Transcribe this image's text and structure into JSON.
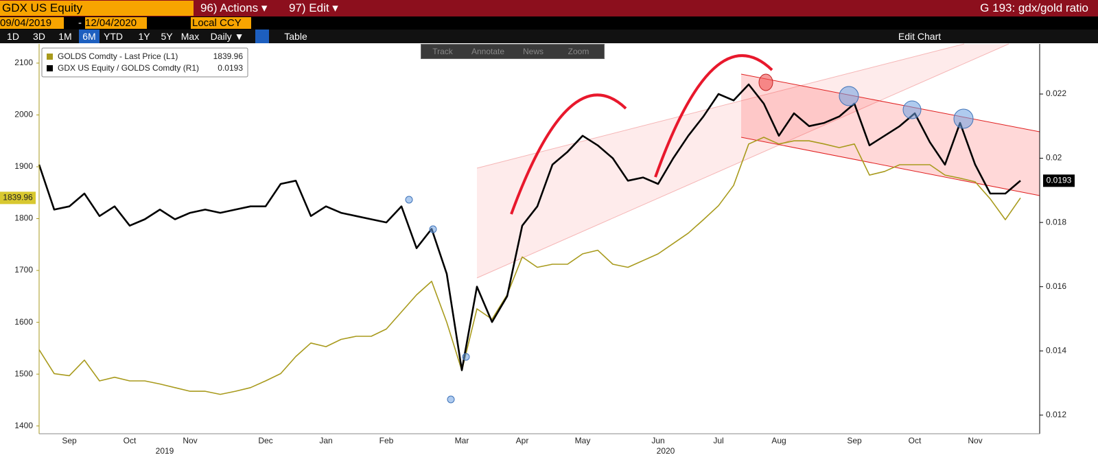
{
  "toolbar": {
    "security": "GDX US Equity",
    "actions": "96) Actions ▾",
    "edit": "97) Edit ▾",
    "function": "G 193: gdx/gold ratio",
    "start_date": "09/04/2019",
    "date_sep": "-",
    "end_date": "12/04/2020",
    "currency": "Local CCY",
    "ranges": [
      "1D",
      "3D",
      "1M",
      "6M",
      "YTD",
      "1Y",
      "5Y",
      "Max"
    ],
    "frequency": "Daily ▼",
    "table": "Table",
    "edit_chart": "Edit Chart",
    "tools": [
      "Track",
      "Annotate",
      "News",
      "Zoom"
    ]
  },
  "chart_data": {
    "type": "line",
    "categories": [
      null,
      null,
      "Sep",
      null,
      null,
      null,
      "Oct",
      null,
      null,
      null,
      "Nov",
      null,
      null,
      null,
      null,
      "Dec",
      null,
      null,
      null,
      "Jan",
      null,
      null,
      null,
      "Feb",
      null,
      null,
      null,
      null,
      "Mar",
      null,
      null,
      null,
      "Apr",
      null,
      null,
      null,
      "May",
      null,
      null,
      null,
      null,
      "Jun",
      null,
      null,
      null,
      "Jul",
      null,
      null,
      null,
      "Aug",
      null,
      null,
      null,
      null,
      "Sep",
      null,
      null,
      null,
      "Oct",
      null,
      null,
      null,
      "Nov",
      null,
      null,
      null
    ],
    "x_year_labels": [
      "2019",
      "2020"
    ],
    "series": [
      {
        "name": "GOLDS Comdty - Last Price (L1)",
        "color": "#a89a1c",
        "axis": "y",
        "values": [
          1547,
          1501,
          1497,
          1527,
          1487,
          1494,
          1487,
          1487,
          1481,
          1474,
          1467,
          1467,
          1461,
          1467,
          1474,
          1487,
          1501,
          1534,
          1560,
          1553,
          1567,
          1573,
          1573,
          1587,
          1620,
          1653,
          1679,
          1600,
          1507,
          1626,
          1606,
          1653,
          1726,
          1706,
          1712,
          1712,
          1732,
          1739,
          1712,
          1706,
          1719,
          1732,
          1752,
          1772,
          1798,
          1825,
          1864,
          1944,
          1957,
          1944,
          1950,
          1950,
          1944,
          1937,
          1944,
          1884,
          1891,
          1904,
          1904,
          1904,
          1884,
          1878,
          1871,
          1838,
          1798,
          1839.96
        ]
      },
      {
        "name": "GDX US Equity / GOLDS Comdty (R1)",
        "color": "#000000",
        "axis": "y2",
        "values": [
          0.0198,
          0.0184,
          0.0185,
          0.0189,
          0.0182,
          0.0185,
          0.0179,
          0.0181,
          0.0184,
          0.0181,
          0.0183,
          0.0184,
          0.0183,
          0.0184,
          0.0185,
          0.0185,
          0.0192,
          0.0193,
          0.0182,
          0.0185,
          0.0183,
          0.0182,
          0.0181,
          0.018,
          0.0185,
          0.0172,
          0.0178,
          0.0164,
          0.0134,
          0.016,
          0.0149,
          0.0157,
          0.0179,
          0.0185,
          0.0198,
          0.0202,
          0.0207,
          0.0204,
          0.02,
          0.0193,
          0.0194,
          0.0192,
          0.02,
          0.0207,
          0.0213,
          0.022,
          0.0218,
          0.0223,
          0.0217,
          0.0207,
          0.0214,
          0.021,
          0.0211,
          0.0213,
          0.0217,
          0.0204,
          0.0207,
          0.021,
          0.0214,
          0.0205,
          0.0198,
          0.0211,
          0.0198,
          0.0189,
          0.0189,
          0.0193
        ]
      }
    ],
    "ylim": [
      1385,
      2137
    ],
    "yticks": [
      1400,
      1500,
      1600,
      1700,
      1800,
      1900,
      2000,
      2100
    ],
    "y2lim": [
      0.01142,
      0.02356
    ],
    "y2ticks": [
      0.012,
      0.014,
      0.016,
      0.018,
      0.02,
      0.022
    ],
    "grid": false,
    "legend": "upper left"
  }
}
